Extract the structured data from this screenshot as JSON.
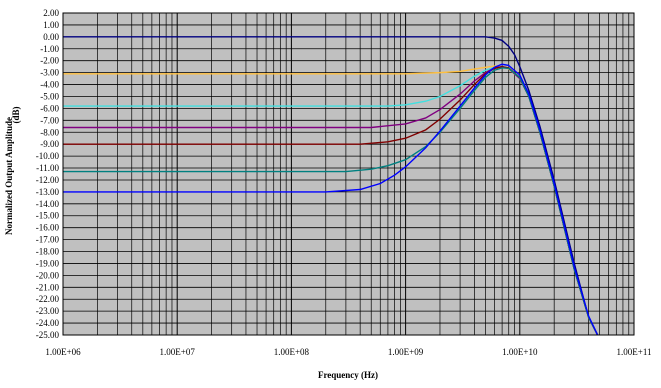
{
  "chart_data": {
    "type": "line",
    "x_scale": "log",
    "xlabel": "Frequency (Hz)",
    "ylabel": "Normalized Output Amplitude",
    "ylabel_unit": "(dB)",
    "xlim": [
      1000000,
      100000000000
    ],
    "ylim": [
      -25,
      2
    ],
    "y_tick_step": 1,
    "x_tick_labels": [
      "1.00E+06",
      "1.00E+07",
      "1.00E+08",
      "1.00E+09",
      "1.00E+10",
      "1.00E+11"
    ],
    "grid": true,
    "plot_background": "#c0c0c0",
    "grid_color": "#000000",
    "series": [
      {
        "color": "#000080",
        "points": [
          [
            1000000,
            0
          ],
          [
            1000000000,
            0
          ],
          [
            3000000000,
            0
          ],
          [
            5000000000,
            0
          ],
          [
            6000000000,
            -0.1
          ],
          [
            7000000000,
            -0.3
          ],
          [
            8000000000,
            -0.8
          ],
          [
            9000000000,
            -1.5
          ],
          [
            10000000000,
            -2.5
          ],
          [
            12000000000,
            -4.5
          ],
          [
            15000000000,
            -7.5
          ],
          [
            20000000000,
            -12
          ],
          [
            30000000000,
            -19
          ],
          [
            40000000000,
            -23.5
          ],
          [
            48000000000,
            -25
          ]
        ]
      },
      {
        "color": "#ffc040",
        "points": [
          [
            1000000,
            -3.1
          ],
          [
            1000000000,
            -3.1
          ],
          [
            2000000000,
            -3.0
          ],
          [
            3000000000,
            -2.9
          ],
          [
            4000000000,
            -2.7
          ],
          [
            5000000000,
            -2.55
          ],
          [
            6000000000,
            -2.45
          ],
          [
            7000000000,
            -2.5
          ],
          [
            8000000000,
            -2.7
          ],
          [
            10000000000,
            -3.5
          ],
          [
            12000000000,
            -5
          ],
          [
            15000000000,
            -8
          ],
          [
            20000000000,
            -12.5
          ],
          [
            30000000000,
            -19.5
          ],
          [
            40000000000,
            -23.5
          ],
          [
            48000000000,
            -25
          ]
        ]
      },
      {
        "color": "#40e0e0",
        "points": [
          [
            1000000,
            -5.8
          ],
          [
            700000000,
            -5.8
          ],
          [
            1000000000,
            -5.7
          ],
          [
            1500000000,
            -5.4
          ],
          [
            2000000000,
            -5.0
          ],
          [
            3000000000,
            -4.1
          ],
          [
            4000000000,
            -3.3
          ],
          [
            5000000000,
            -2.8
          ],
          [
            6000000000,
            -2.55
          ],
          [
            7000000000,
            -2.5
          ],
          [
            8000000000,
            -2.65
          ],
          [
            10000000000,
            -3.5
          ],
          [
            12000000000,
            -5
          ],
          [
            15000000000,
            -8
          ],
          [
            20000000000,
            -12.5
          ],
          [
            30000000000,
            -19.5
          ],
          [
            40000000000,
            -23.5
          ],
          [
            48000000000,
            -25
          ]
        ]
      },
      {
        "color": "#800080",
        "points": [
          [
            1000000,
            -7.6
          ],
          [
            500000000,
            -7.6
          ],
          [
            1000000000,
            -7.3
          ],
          [
            1500000000,
            -6.8
          ],
          [
            2000000000,
            -6.1
          ],
          [
            3000000000,
            -4.8
          ],
          [
            4000000000,
            -3.7
          ],
          [
            5000000000,
            -3.0
          ],
          [
            6000000000,
            -2.6
          ],
          [
            7000000000,
            -2.5
          ],
          [
            8000000000,
            -2.65
          ],
          [
            10000000000,
            -3.5
          ],
          [
            12000000000,
            -5
          ],
          [
            15000000000,
            -8
          ],
          [
            20000000000,
            -12.5
          ],
          [
            30000000000,
            -19.5
          ],
          [
            40000000000,
            -23.5
          ],
          [
            48000000000,
            -25
          ]
        ]
      },
      {
        "color": "#800000",
        "points": [
          [
            1000000,
            -9.0
          ],
          [
            400000000,
            -9.0
          ],
          [
            700000000,
            -8.8
          ],
          [
            1000000000,
            -8.5
          ],
          [
            1500000000,
            -7.8
          ],
          [
            2000000000,
            -6.9
          ],
          [
            3000000000,
            -5.3
          ],
          [
            4000000000,
            -4.0
          ],
          [
            5000000000,
            -3.1
          ],
          [
            6000000000,
            -2.65
          ],
          [
            7000000000,
            -2.5
          ],
          [
            8000000000,
            -2.6
          ],
          [
            10000000000,
            -3.4
          ],
          [
            12000000000,
            -5
          ],
          [
            15000000000,
            -8
          ],
          [
            20000000000,
            -12.5
          ],
          [
            30000000000,
            -19.5
          ],
          [
            40000000000,
            -23.5
          ],
          [
            48000000000,
            -25
          ]
        ]
      },
      {
        "color": "#008080",
        "points": [
          [
            1000000,
            -11.3
          ],
          [
            300000000,
            -11.3
          ],
          [
            500000000,
            -11.1
          ],
          [
            700000000,
            -10.8
          ],
          [
            1000000000,
            -10.3
          ],
          [
            1500000000,
            -9.2
          ],
          [
            2000000000,
            -8.0
          ],
          [
            3000000000,
            -6.0
          ],
          [
            4000000000,
            -4.5
          ],
          [
            5000000000,
            -3.4
          ],
          [
            6000000000,
            -2.8
          ],
          [
            7000000000,
            -2.6
          ],
          [
            8000000000,
            -2.65
          ],
          [
            10000000000,
            -3.4
          ],
          [
            12000000000,
            -5
          ],
          [
            15000000000,
            -8
          ],
          [
            20000000000,
            -12.5
          ],
          [
            30000000000,
            -19.5
          ],
          [
            40000000000,
            -23.5
          ],
          [
            48000000000,
            -25
          ]
        ]
      },
      {
        "color": "#0000ff",
        "points": [
          [
            1000000,
            -13.0
          ],
          [
            200000000,
            -13.0
          ],
          [
            400000000,
            -12.8
          ],
          [
            600000000,
            -12.3
          ],
          [
            800000000,
            -11.6
          ],
          [
            1000000000,
            -10.9
          ],
          [
            1500000000,
            -9.3
          ],
          [
            2000000000,
            -7.9
          ],
          [
            3000000000,
            -5.8
          ],
          [
            4000000000,
            -4.3
          ],
          [
            5000000000,
            -3.2
          ],
          [
            6000000000,
            -2.55
          ],
          [
            7000000000,
            -2.3
          ],
          [
            8000000000,
            -2.4
          ],
          [
            10000000000,
            -3.2
          ],
          [
            12000000000,
            -4.8
          ],
          [
            15000000000,
            -7.8
          ],
          [
            20000000000,
            -12.3
          ],
          [
            30000000000,
            -19.3
          ],
          [
            40000000000,
            -23.4
          ],
          [
            48000000000,
            -25
          ]
        ]
      }
    ]
  }
}
